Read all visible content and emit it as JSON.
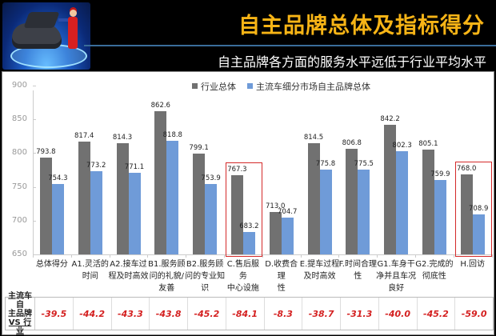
{
  "header": {
    "title": "自主品牌总体及指标得分",
    "subtitle": "自主品牌各方面的服务水平远低于行业平均水平",
    "logo_icon": "car-mechanic-icon"
  },
  "colors": {
    "title": "#f7b416",
    "series_industry": "#717171",
    "series_domestic": "#6f9bd8",
    "highlight": "#d42a2a",
    "diff_text": "#d42020"
  },
  "legend": [
    "行业总体",
    "主流车细分市场自主品牌总体"
  ],
  "table": {
    "row_header": [
      "主流车自",
      "主品牌",
      "VS 行业"
    ],
    "values": [
      "-39.5",
      "-44.2",
      "-43.3",
      "-43.8",
      "-45.2",
      "-84.1",
      "-8.3",
      "-38.7",
      "-31.3",
      "-40.0",
      "-45.2",
      "-59.0"
    ]
  },
  "chart_data": {
    "type": "bar",
    "title": "自主品牌总体及指标得分",
    "subtitle": "自主品牌各方面的服务水平远低于行业平均水平",
    "xlabel": "",
    "ylabel": "",
    "ylim": [
      650,
      900
    ],
    "yticks": [
      "900",
      "850",
      "800",
      "750",
      "700",
      "650"
    ],
    "grid": false,
    "legend_position": "top",
    "categories": [
      "总体得分",
      "A1.灵活的时间",
      "A2.接车过程及时高效",
      "B1.服务顾问的礼貌/友善",
      "B2.服务顾问的专业知识",
      "C.售后服务中心设施",
      "D.收费合理性",
      "E.提车过程及时高效",
      "F.时间合理性",
      "G1.车身干净并且车况良好",
      "G2.完成的彻底性",
      "H.回访"
    ],
    "category_lines": [
      [
        "总体得分"
      ],
      [
        "A1.灵活的",
        "时间"
      ],
      [
        "A2.接车过",
        "程及时高效"
      ],
      [
        "B1.服务顾",
        "问的礼貌/",
        "友善"
      ],
      [
        "B2.服务顾",
        "问的专业知",
        "识"
      ],
      [
        "C.售后服务",
        "中心设施"
      ],
      [
        "D.收费合理",
        "性"
      ],
      [
        "E.提车过程",
        "及时高效"
      ],
      [
        "F.时间合理",
        "性"
      ],
      [
        "G1.车身干",
        "净并且车况",
        "良好"
      ],
      [
        "G2.完成的",
        "彻底性"
      ],
      [
        "H.回访"
      ]
    ],
    "series": [
      {
        "name": "行业总体",
        "values": [
          793.8,
          817.4,
          814.3,
          862.6,
          799.1,
          767.3,
          713.0,
          814.5,
          806.8,
          842.2,
          805.1,
          768.0
        ],
        "labels": [
          "793.8",
          "817.4",
          "814.3",
          "862.6",
          "799.1",
          "767.3",
          "713.0",
          "814.5",
          "806.8",
          "842.2",
          "805.1",
          "768.0"
        ]
      },
      {
        "name": "主流车细分市场自主品牌总体",
        "values": [
          754.3,
          773.2,
          771.1,
          818.8,
          753.9,
          683.2,
          704.7,
          775.8,
          775.5,
          802.3,
          759.9,
          708.9
        ],
        "labels": [
          "754.3",
          "773.2",
          "771.1",
          "818.8",
          "753.9",
          "683.2",
          "704.7",
          "775.8",
          "775.5",
          "802.3",
          "759.9",
          "708.9"
        ]
      }
    ],
    "difference_row": {
      "label": "主流车自主品牌 VS 行业",
      "values": [
        -39.5,
        -44.2,
        -43.3,
        -43.8,
        -45.2,
        -84.1,
        -8.3,
        -38.7,
        -31.3,
        -40.0,
        -45.2,
        -59.0
      ]
    },
    "highlighted_categories": [
      "C.售后服务中心设施",
      "H.回访"
    ]
  }
}
